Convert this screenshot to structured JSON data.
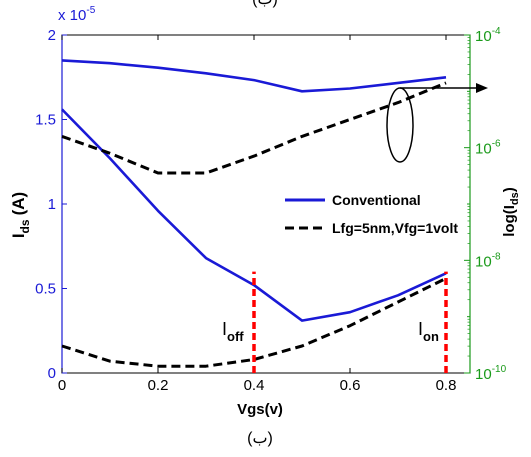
{
  "chart_data": {
    "type": "line",
    "caption": "(ب)",
    "top_caption": "(ب)",
    "xlabel": "Vgs(v)",
    "ylabel": "I",
    "ylabel_sub": "ds",
    "ylabel_unit": "(A)",
    "y2label": "log(I",
    "y2label_sub": "ds",
    "y2label_close": ")",
    "xlim": [
      0,
      0.85
    ],
    "ylim": [
      0,
      2e-05
    ],
    "y2lim_exp": [
      -10,
      -4
    ],
    "y_exponent_label": "x 10",
    "y_exponent_power": "-5",
    "x_ticks": [
      "0",
      "0.2",
      "0.4",
      "0.6",
      "0.8"
    ],
    "x_tick_values": [
      0,
      0.2,
      0.4,
      0.6,
      0.8
    ],
    "y_ticks": [
      "0",
      "0.5",
      "1",
      "1.5",
      "2"
    ],
    "y_tick_values": [
      0,
      0.5,
      1,
      1.5,
      2
    ],
    "y2_ticks": [
      {
        "base": "10",
        "exp": "-10",
        "value": -10
      },
      {
        "base": "10",
        "exp": "-8",
        "value": -8
      },
      {
        "base": "10",
        "exp": "-6",
        "value": -6
      },
      {
        "base": "10",
        "exp": "-4",
        "value": -4
      }
    ],
    "x": [
      0,
      0.1,
      0.2,
      0.3,
      0.4,
      0.5,
      0.6,
      0.7,
      0.8
    ],
    "series": [
      {
        "name": "Conventional",
        "axis": "left",
        "style": "solid",
        "color": "#1a1ad6",
        "values": [
          1.56,
          1.27,
          0.96,
          0.68,
          0.52,
          0.31,
          0.36,
          0.46,
          0.59
        ]
      },
      {
        "name": "Lfg=5nm,Vfg=1volt",
        "axis": "left",
        "style": "dashed",
        "color": "#000000",
        "values": [
          0.16,
          0.07,
          0.04,
          0.04,
          0.08,
          0.16,
          0.28,
          0.42,
          0.56
        ]
      },
      {
        "name": "Conventional",
        "axis": "right",
        "style": "solid",
        "color": "#1a1ad6",
        "values": [
          -4.45,
          -4.5,
          -4.58,
          -4.68,
          -4.8,
          -5.0,
          -4.95,
          -4.85,
          -4.75
        ]
      },
      {
        "name": "Lfg=5nm,Vfg=1volt",
        "axis": "right",
        "style": "dashed",
        "color": "#000000",
        "values": [
          -5.8,
          -6.1,
          -6.45,
          -6.45,
          -6.15,
          -5.8,
          -5.5,
          -5.2,
          -4.85
        ]
      }
    ],
    "legend": {
      "position": "center-right",
      "entries": [
        {
          "label": "Conventional",
          "color": "#1a1ad6",
          "style": "solid"
        },
        {
          "label": "Lfg=5nm,Vfg=1volt",
          "color": "#000000",
          "style": "dashed"
        }
      ]
    },
    "markers": [
      {
        "x": 0.4,
        "label": "I",
        "sub": "off",
        "color": "#ff0000"
      },
      {
        "x": 0.8,
        "label": "I",
        "sub": "on",
        "color": "#ff0000"
      }
    ],
    "colors": {
      "left_axis": "#1a1ad6",
      "right_axis": "#1a9a1a",
      "marker": "#ff0000"
    },
    "grid": false
  }
}
